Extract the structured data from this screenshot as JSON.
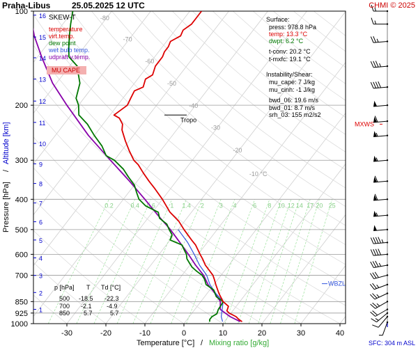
{
  "header": {
    "station": "Praha-Libus",
    "datetime": "25.05.2025 12 UTC",
    "credit": "CHMI © 2025"
  },
  "chart_data": {
    "type": "skew-t",
    "diagram_label": "SKEW-T",
    "xlabel": "Temperature [°C]",
    "xlabel_sep": "/",
    "xlabel2": "Mixing ratio [g/kg]",
    "ylabel": "Pressure [hPa]",
    "ylabel_sep": "/",
    "ylabel2": "Altitude [km]",
    "xlim": [
      -35,
      45
    ],
    "ylim": [
      1000,
      100
    ],
    "x_ticks": [
      -30,
      -20,
      -10,
      0,
      10,
      20,
      30,
      40
    ],
    "p_ticks": [
      100,
      200,
      300,
      400,
      500,
      600,
      700,
      850,
      925,
      1000
    ],
    "km_ticks": [
      {
        "km": "1",
        "p": 900
      },
      {
        "km": "2",
        "p": 795
      },
      {
        "km": "3",
        "p": 701
      },
      {
        "km": "4",
        "p": 616
      },
      {
        "km": "5",
        "p": 540
      },
      {
        "km": "6",
        "p": 472
      },
      {
        "km": "7",
        "p": 411
      },
      {
        "km": "8",
        "p": 356
      },
      {
        "km": "9",
        "p": 308
      },
      {
        "km": "10",
        "p": 265
      },
      {
        "km": "11",
        "p": 227
      },
      {
        "km": "12",
        "p": 194
      },
      {
        "km": "13",
        "p": 165
      },
      {
        "km": "14",
        "p": 141
      },
      {
        "km": "15",
        "p": 121
      },
      {
        "km": "16",
        "p": 103
      }
    ],
    "isotherm_labels": [
      {
        "t": -80,
        "p": 107
      },
      {
        "t": -70,
        "p": 125
      },
      {
        "t": -60,
        "p": 147
      },
      {
        "t": -50,
        "p": 173
      },
      {
        "t": -40,
        "p": 204
      },
      {
        "t": -30,
        "p": 240
      },
      {
        "t": -20,
        "p": 283
      },
      {
        "t": -10,
        "p": 337
      }
    ],
    "mixing_ratio_labels": [
      "0.2",
      "0.4",
      "0.6",
      "1",
      "1.4",
      "2",
      "3",
      "4",
      "6",
      "8",
      "10",
      "12",
      "14",
      "17",
      "20",
      "25"
    ],
    "legend": [
      {
        "label": "temperature",
        "color": "#dd0000"
      },
      {
        "label": "virt.temp.",
        "color": "#dd0000"
      },
      {
        "label": "dew point",
        "color": "#007700"
      },
      {
        "label": "wet bulb temp.",
        "color": "#3355dd"
      },
      {
        "label": "udpraft v.temp.",
        "color": "#8800aa"
      }
    ],
    "mucape_label": "MU CAPE",
    "tropo_label": "Tropo",
    "tropo_p": 215,
    "mxws_label": "MXWS",
    "mxws_p": 230,
    "wbzl_label": "WBZL",
    "wbzl_p": 745,
    "sfc_label": "SFC: 304 m ASL",
    "surface": {
      "title": "Surface:",
      "press": "press: 978.8 hPa",
      "temp": "temp: 13.3 °C",
      "dwpt": "dwpt: 6.2 °C",
      "tconv": "t-conv: 20.2 °C",
      "tmxfc": "t-mxfc: 19.1 °C"
    },
    "instability": {
      "title": "Instability/Shear:",
      "mu_cape": "mu_cape: 7 J/kg",
      "mu_cinh": "mu_cinh: -1 J/kg",
      "bwd_06": "bwd_06: 19.6 m/s",
      "bwd_01": "bwd_01: 8.7 m/s",
      "srh_03": "srh_03: 155 m2/s2"
    },
    "level_table": {
      "headers": [
        "p [hPa]",
        "T",
        "Td [°C]"
      ],
      "rows": [
        [
          "500",
          "-18.5",
          "-22.3"
        ],
        [
          "700",
          "-2.1",
          "-4.9"
        ],
        [
          "850",
          "5.7",
          "5.7"
        ]
      ]
    },
    "temperature": [
      [
        985,
        14.5
      ],
      [
        970,
        13.3
      ],
      [
        950,
        12
      ],
      [
        925,
        9.5
      ],
      [
        910,
        8.5
      ],
      [
        880,
        8
      ],
      [
        850,
        5.7
      ],
      [
        800,
        3
      ],
      [
        750,
        0.5
      ],
      [
        720,
        -1
      ],
      [
        700,
        -2.1
      ],
      [
        650,
        -6
      ],
      [
        620,
        -8
      ],
      [
        600,
        -9.5
      ],
      [
        560,
        -12.5
      ],
      [
        540,
        -14.5
      ],
      [
        500,
        -18.5
      ],
      [
        470,
        -21.5
      ],
      [
        440,
        -25.5
      ],
      [
        400,
        -30
      ],
      [
        370,
        -34
      ],
      [
        350,
        -37
      ],
      [
        330,
        -40
      ],
      [
        310,
        -43
      ],
      [
        300,
        -45
      ],
      [
        280,
        -48
      ],
      [
        260,
        -51
      ],
      [
        240,
        -54
      ],
      [
        230,
        -55
      ],
      [
        220,
        -57
      ],
      [
        215,
        -59
      ],
      [
        210,
        -58.5
      ],
      [
        200,
        -57.5
      ],
      [
        190,
        -58
      ],
      [
        180,
        -58.5
      ],
      [
        175,
        -57
      ],
      [
        165,
        -58
      ],
      [
        160,
        -57
      ],
      [
        150,
        -58
      ],
      [
        140,
        -58
      ],
      [
        135,
        -58.5
      ],
      [
        130,
        -58.5
      ],
      [
        125,
        -59
      ],
      [
        120,
        -57.5
      ],
      [
        115,
        -58
      ],
      [
        110,
        -57
      ],
      [
        105,
        -57
      ],
      [
        100,
        -57
      ]
    ],
    "dewpoint": [
      [
        985,
        6.2
      ],
      [
        970,
        5.8
      ],
      [
        950,
        5.8
      ],
      [
        930,
        6.5
      ],
      [
        900,
        6
      ],
      [
        870,
        5.9
      ],
      [
        850,
        5.7
      ],
      [
        820,
        3
      ],
      [
        800,
        2
      ],
      [
        780,
        1
      ],
      [
        750,
        -2
      ],
      [
        720,
        -3.5
      ],
      [
        700,
        -4.9
      ],
      [
        680,
        -7
      ],
      [
        660,
        -9
      ],
      [
        640,
        -10.5
      ],
      [
        620,
        -12
      ],
      [
        600,
        -13
      ],
      [
        580,
        -14.5
      ],
      [
        560,
        -16
      ],
      [
        540,
        -20
      ],
      [
        520,
        -20.5
      ],
      [
        500,
        -22.3
      ],
      [
        480,
        -24
      ],
      [
        460,
        -27
      ],
      [
        440,
        -28.5
      ],
      [
        420,
        -33
      ],
      [
        400,
        -36
      ],
      [
        380,
        -38
      ],
      [
        360,
        -40
      ],
      [
        340,
        -43
      ],
      [
        320,
        -46
      ],
      [
        300,
        -50
      ],
      [
        290,
        -53
      ],
      [
        270,
        -56
      ],
      [
        250,
        -60
      ],
      [
        230,
        -64
      ],
      [
        215,
        -68
      ],
      [
        200,
        -70
      ],
      [
        190,
        -72
      ],
      [
        170,
        -74
      ],
      [
        160,
        -76
      ],
      [
        150,
        -78
      ],
      [
        140,
        -82
      ],
      [
        130,
        -84
      ],
      [
        120,
        -86
      ],
      [
        110,
        -88
      ],
      [
        100,
        -90
      ]
    ],
    "wetbulb": [
      [
        985,
        9.5
      ],
      [
        950,
        8.2
      ],
      [
        925,
        7.6
      ],
      [
        900,
        7
      ],
      [
        850,
        5.7
      ],
      [
        800,
        2.2
      ],
      [
        750,
        -1
      ],
      [
        700,
        -3.7
      ],
      [
        650,
        -7.5
      ],
      [
        600,
        -11
      ],
      [
        550,
        -15
      ],
      [
        500,
        -20
      ]
    ],
    "parcel": [
      [
        985,
        14
      ],
      [
        950,
        10.5
      ],
      [
        925,
        8.5
      ],
      [
        900,
        6.5
      ],
      [
        850,
        5
      ],
      [
        800,
        2
      ],
      [
        750,
        -1.5
      ],
      [
        700,
        -4.5
      ],
      [
        650,
        -8.5
      ],
      [
        600,
        -12.5
      ],
      [
        550,
        -17
      ],
      [
        500,
        -22
      ],
      [
        450,
        -28
      ],
      [
        400,
        -34.5
      ],
      [
        350,
        -42
      ],
      [
        300,
        -51
      ],
      [
        250,
        -61.5
      ],
      [
        200,
        -73
      ],
      [
        170,
        -81
      ],
      [
        140,
        -89
      ],
      [
        120,
        -95
      ],
      [
        100,
        -101
      ]
    ],
    "wind_barbs": [
      {
        "p": 990,
        "dir": 200,
        "spd": 5
      },
      {
        "p": 950,
        "dir": 220,
        "spd": 12
      },
      {
        "p": 925,
        "dir": 230,
        "spd": 17
      },
      {
        "p": 900,
        "dir": 240,
        "spd": 20
      },
      {
        "p": 850,
        "dir": 240,
        "spd": 25
      },
      {
        "p": 800,
        "dir": 245,
        "spd": 25
      },
      {
        "p": 750,
        "dir": 250,
        "spd": 25
      },
      {
        "p": 700,
        "dir": 255,
        "spd": 30
      },
      {
        "p": 650,
        "dir": 260,
        "spd": 35
      },
      {
        "p": 600,
        "dir": 265,
        "spd": 40
      },
      {
        "p": 550,
        "dir": 265,
        "spd": 45
      },
      {
        "p": 500,
        "dir": 265,
        "spd": 50
      },
      {
        "p": 450,
        "dir": 265,
        "spd": 55
      },
      {
        "p": 400,
        "dir": 265,
        "spd": 60
      },
      {
        "p": 350,
        "dir": 265,
        "spd": 60
      },
      {
        "p": 300,
        "dir": 265,
        "spd": 55
      },
      {
        "p": 250,
        "dir": 265,
        "spd": 55
      },
      {
        "p": 225,
        "dir": 265,
        "spd": 60
      },
      {
        "p": 200,
        "dir": 265,
        "spd": 50
      },
      {
        "p": 175,
        "dir": 265,
        "spd": 40
      },
      {
        "p": 150,
        "dir": 265,
        "spd": 35
      },
      {
        "p": 125,
        "dir": 265,
        "spd": 25
      },
      {
        "p": 110,
        "dir": 270,
        "spd": 15
      },
      {
        "p": 100,
        "dir": 270,
        "spd": 15
      }
    ]
  }
}
